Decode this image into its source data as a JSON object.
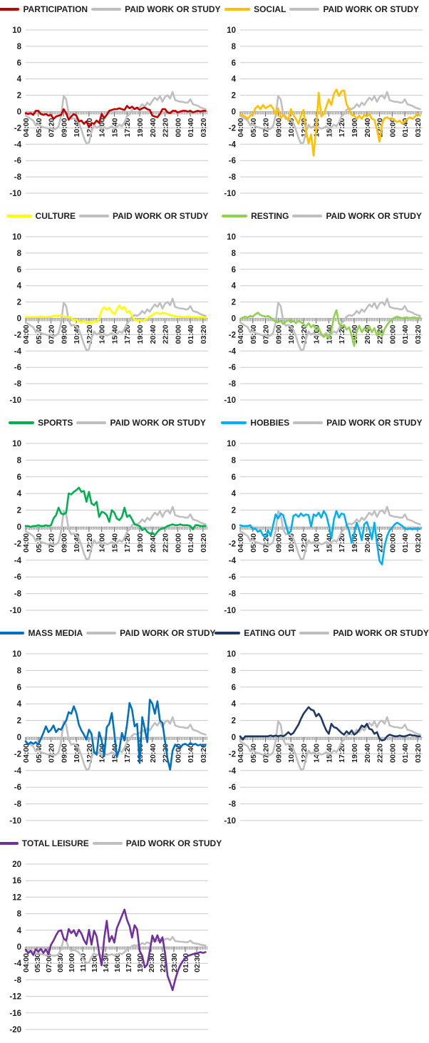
{
  "page": {
    "background": "#ffffff"
  },
  "axis": {
    "text_color": "#1f1f1f",
    "grid_color": "#c9c9c9",
    "tick_color": "#595959",
    "x_labels_100min": [
      "04:00",
      "05:40",
      "07:20",
      "09:00",
      "10:40",
      "12:20",
      "14:00",
      "15:40",
      "17:20",
      "19:00",
      "20:40",
      "22:20",
      "00:00",
      "01:40",
      "03:20"
    ],
    "x_labels_90min": [
      "04:00",
      "05:30",
      "07:00",
      "08:30",
      "10:00",
      "11:30",
      "13:00",
      "14:30",
      "16:00",
      "17:30",
      "19:00",
      "20:30",
      "22:00",
      "23:30",
      "01:00",
      "02:30"
    ],
    "y_ticks_default": [
      10,
      8,
      6,
      4,
      2,
      0,
      -2,
      -4,
      -6,
      -8,
      -10
    ],
    "y_ticks_total_leisure": [
      20,
      16,
      12,
      8,
      4,
      0,
      -4,
      -8,
      -12,
      -16,
      -20
    ]
  },
  "paid_work_or_study": {
    "name": "PAID WORK OR STUDY",
    "color": "#BFBFBF",
    "time_step_minutes": 20,
    "start_time": "04:00",
    "values": [
      -0.5,
      -0.7,
      -0.9,
      -1.1,
      -1.7,
      -1.5,
      -1.8,
      -1.9,
      -2.0,
      -2.1,
      -2.0,
      -2.2,
      -2.1,
      -1.8,
      -0.5,
      1.9,
      1.5,
      -0.3,
      -0.9,
      -0.8,
      -1.0,
      -1.4,
      -2.2,
      -3.2,
      -3.9,
      -3.8,
      -2.5,
      -1.6,
      -2.0,
      -1.8,
      -2.2,
      -1.9,
      -2.1,
      -2.0,
      -1.8,
      -2.1,
      -1.9,
      -1.6,
      -1.8,
      -1.3,
      -0.6,
      -0.3,
      0.2,
      0.4,
      0.3,
      0.5,
      0.9,
      0.6,
      1.1,
      0.8,
      1.3,
      1.7,
      1.4,
      1.9,
      1.2,
      1.8,
      2.0,
      1.6,
      2.4,
      1.4,
      1.3,
      1.2,
      1.2,
      1.1,
      1.1,
      1.5,
      0.9,
      0.8,
      0.7,
      0.5,
      0.4,
      0.3
    ]
  },
  "chart_data": [
    {
      "type": "line",
      "name": "PARTICIPATION",
      "color": "#C00000",
      "ylim": [
        -10,
        10
      ],
      "ytick": 2,
      "x_label_set": "100min",
      "overlay": "PAID WORK OR STUDY",
      "grid": true,
      "legend_position": "top",
      "values": [
        -0.2,
        -0.3,
        -0.2,
        -0.4,
        0.1,
        0.1,
        -0.3,
        -0.4,
        -0.3,
        -0.5,
        -0.4,
        -0.9,
        -0.6,
        -0.5,
        -0.4,
        0.3,
        -0.2,
        -1.0,
        -0.6,
        -0.3,
        -0.5,
        -1.2,
        -1.1,
        -1.5,
        -1.2,
        -1.9,
        -1.4,
        -1.5,
        -1.1,
        -1.4,
        -0.3,
        -0.8,
        -0.4,
        0.1,
        0.2,
        0.3,
        0.3,
        0.4,
        0.3,
        0.2,
        0.7,
        0.4,
        0.6,
        0.3,
        0.5,
        0.2,
        0.4,
        0.5,
        0.3,
        0.2,
        -0.5,
        -0.6,
        -0.7,
        -0.3,
        0.3,
        0.3,
        -0.1,
        -0.2,
        0.1,
        0.1,
        -0.1,
        0.0,
        0.1,
        0.1,
        0.0,
        0.1,
        -0.1,
        0.0,
        0.1,
        0.0,
        0.1,
        0.1
      ]
    },
    {
      "type": "line",
      "name": "SOCIAL",
      "color": "#FFC000",
      "ylim": [
        -10,
        10
      ],
      "ytick": 2,
      "x_label_set": "100min",
      "overlay": "PAID WORK OR STUDY",
      "grid": true,
      "legend_position": "top",
      "values": [
        -0.3,
        -0.5,
        -0.6,
        -0.9,
        -0.5,
        -0.4,
        0.4,
        0.7,
        0.3,
        0.8,
        0.4,
        0.6,
        0.8,
        0.4,
        -0.4,
        0.4,
        -0.8,
        -0.4,
        -0.6,
        -1.1,
        0.3,
        -0.4,
        -0.9,
        -1.5,
        -0.5,
        0.2,
        -2.4,
        -3.9,
        -2.8,
        -5.4,
        -2.0,
        2.3,
        -0.6,
        -0.3,
        0.6,
        1.5,
        0.8,
        2.2,
        2.7,
        1.9,
        2.5,
        2.6,
        0.9,
        0.3,
        -0.4,
        -0.5,
        -0.9,
        -0.5,
        -0.9,
        -0.4,
        -0.6,
        -0.3,
        -0.9,
        -1.0,
        -2.2,
        -3.7,
        -1.5,
        -0.8,
        -0.7,
        -0.9,
        -0.8,
        -1.1,
        -1.3,
        -1.1,
        -1.5,
        -1.2,
        -0.9,
        -0.7,
        -0.9,
        -0.6,
        -0.3,
        -0.5
      ]
    },
    {
      "type": "line",
      "name": "CULTURE",
      "color": "#FFFF00",
      "ylim": [
        -10,
        10
      ],
      "ytick": 2,
      "x_label_set": "100min",
      "overlay": "PAID WORK OR STUDY",
      "grid": true,
      "legend_position": "top",
      "values": [
        0.15,
        0.15,
        0.15,
        0.15,
        0.15,
        0.15,
        0.2,
        0.15,
        0.15,
        0.2,
        0.15,
        0.3,
        0.3,
        0.25,
        0.4,
        0.2,
        0.15,
        0.15,
        0.1,
        -0.3,
        -0.15,
        -0.4,
        -0.5,
        -0.3,
        -0.6,
        -0.4,
        -0.7,
        -0.3,
        -0.5,
        0.0,
        1.0,
        1.4,
        1.0,
        1.3,
        0.8,
        0.5,
        1.1,
        1.6,
        1.1,
        1.4,
        0.7,
        0.9,
        0.3,
        -0.2,
        -0.3,
        -0.2,
        -0.4,
        -0.2,
        0.0,
        0.2,
        0.4,
        0.6,
        0.7,
        0.5,
        0.7,
        0.6,
        0.5,
        0.4,
        0.3,
        0.25,
        0.2,
        0.2,
        0.15,
        0.15,
        0.2,
        0.15,
        0.15,
        0.15,
        0.1,
        0.15,
        0.1,
        0.1
      ]
    },
    {
      "type": "line",
      "name": "RESTING",
      "color": "#92D050",
      "ylim": [
        -10,
        10
      ],
      "ytick": 2,
      "x_label_set": "100min",
      "overlay": "PAID WORK OR STUDY",
      "grid": true,
      "legend_position": "top",
      "values": [
        -0.1,
        0.1,
        0.2,
        0.1,
        0.3,
        0.2,
        0.5,
        0.7,
        0.4,
        0.3,
        0.2,
        0.3,
        0.1,
        -0.2,
        -0.4,
        -0.5,
        -0.3,
        -0.7,
        -0.4,
        -0.2,
        -0.5,
        -0.3,
        -0.6,
        -0.3,
        -0.5,
        -0.7,
        -1.0,
        -0.6,
        -1.1,
        -0.8,
        -1.5,
        -1.2,
        -1.9,
        -2.3,
        -2.0,
        -2.5,
        -1.5,
        0.2,
        1.0,
        -0.6,
        -1.1,
        -0.8,
        -1.4,
        -1.1,
        -2.1,
        -3.4,
        -1.6,
        -0.9,
        -1.7,
        -1.2,
        -1.5,
        -1.0,
        -1.7,
        -1.2,
        -2.1,
        -1.6,
        -2.2,
        -1.3,
        -0.8,
        -0.4,
        -0.1,
        0.1,
        0.2,
        0.1,
        0.0,
        0.1,
        0.1,
        0.0,
        0.1,
        0.1,
        0.0,
        0.1
      ]
    },
    {
      "type": "line",
      "name": "SPORTS",
      "color": "#00B050",
      "ylim": [
        -10,
        10
      ],
      "ytick": 2,
      "x_label_set": "100min",
      "overlay": "PAID WORK OR STUDY",
      "grid": true,
      "legend_position": "top",
      "values": [
        0.1,
        0.1,
        0.0,
        0.1,
        0.1,
        0.2,
        0.1,
        0.1,
        0.2,
        0.1,
        0.2,
        1.0,
        1.4,
        2.3,
        1.6,
        1.5,
        1.7,
        4.0,
        3.9,
        4.2,
        4.4,
        4.7,
        4.2,
        4.3,
        3.0,
        4.2,
        2.8,
        2.6,
        3.0,
        1.2,
        1.8,
        1.7,
        1.4,
        0.6,
        2.0,
        1.7,
        1.0,
        0.8,
        1.2,
        2.3,
        1.2,
        1.4,
        0.9,
        0.3,
        0.2,
        0.1,
        -0.4,
        -0.2,
        -0.6,
        -0.8,
        -0.7,
        -1.0,
        -0.6,
        -0.3,
        -0.2,
        -0.1,
        0.1,
        0.2,
        0.3,
        0.2,
        0.2,
        0.3,
        0.2,
        0.2,
        0.2,
        0.1,
        -0.3,
        0.2,
        0.2,
        0.1,
        0.1,
        0.1
      ]
    },
    {
      "type": "line",
      "name": "HOBBIES",
      "color": "#00B0F0",
      "ylim": [
        -10,
        10
      ],
      "ytick": 2,
      "x_label_set": "100min",
      "overlay": "PAID WORK OR STUDY",
      "grid": true,
      "legend_position": "top",
      "values": [
        0.2,
        0.1,
        0.1,
        0.1,
        0.2,
        -0.3,
        -0.2,
        -0.6,
        -0.4,
        -1.0,
        -1.3,
        -0.4,
        -1.1,
        0.2,
        1.5,
        1.0,
        1.6,
        1.4,
        0.3,
        -0.8,
        -0.5,
        1.3,
        1.5,
        1.2,
        1.6,
        1.3,
        1.5,
        1.4,
        0.0,
        1.5,
        1.3,
        1.7,
        1.1,
        1.9,
        1.4,
        0.2,
        -1.4,
        0.9,
        1.9,
        1.1,
        1.6,
        1.5,
        0.3,
        -0.5,
        -1.9,
        -0.8,
        0.5,
        -0.4,
        -1.6,
        0.3,
        0.6,
        -0.3,
        -1.5,
        0.5,
        -2.0,
        -4.1,
        -4.5,
        -2.3,
        -1.1,
        -0.4,
        -0.1,
        0.3,
        0.5,
        0.3,
        0.1,
        -0.2,
        -0.3,
        -0.2,
        -0.3,
        -0.2,
        -0.3,
        -0.2
      ]
    },
    {
      "type": "line",
      "name": "MASS MEDIA",
      "color": "#0070C0",
      "ylim": [
        -10,
        10
      ],
      "ytick": 2,
      "x_label_set": "100min",
      "overlay": "PAID WORK OR STUDY",
      "grid": true,
      "legend_position": "top",
      "values": [
        -0.5,
        -0.9,
        -0.6,
        -0.8,
        -0.6,
        -0.9,
        -0.2,
        0.5,
        1.3,
        0.6,
        0.9,
        1.4,
        0.6,
        1.0,
        0.9,
        1.5,
        2.0,
        3.0,
        2.8,
        3.7,
        2.9,
        1.5,
        0.8,
        0.3,
        -0.3,
        0.9,
        0.4,
        -1.8,
        -2.1,
        0.6,
        -0.4,
        -2.3,
        1.2,
        1.6,
        2.9,
        0.5,
        -2.4,
        -1.4,
        0.5,
        -0.4,
        1.5,
        4.1,
        3.3,
        1.3,
        1.6,
        -3.1,
        2.4,
        1.0,
        -0.6,
        4.5,
        4.0,
        2.8,
        4.3,
        2.0,
        1.7,
        -0.5,
        -2.6,
        -3.9,
        -1.6,
        -0.9,
        -1.1,
        -1.3,
        -0.9,
        -0.8,
        -1.0,
        -0.7,
        -0.9,
        -0.8,
        -1.0,
        -0.9,
        -1.0,
        -0.9
      ]
    },
    {
      "type": "line",
      "name": "EATING OUT",
      "color": "#1F3864",
      "ylim": [
        -10,
        10
      ],
      "ytick": 2,
      "x_label_set": "100min",
      "overlay": "PAID WORK OR STUDY",
      "grid": true,
      "legend_position": "top",
      "values": [
        0.1,
        -0.3,
        0.1,
        0.1,
        0.1,
        0.1,
        0.1,
        0.1,
        0.1,
        0.1,
        0.1,
        0.1,
        0.2,
        0.1,
        0.2,
        0.1,
        0.2,
        0.1,
        0.3,
        0.6,
        0.3,
        0.5,
        1.0,
        1.5,
        2.2,
        2.8,
        3.2,
        3.6,
        3.3,
        3.2,
        2.5,
        2.8,
        2.3,
        1.5,
        0.8,
        0.4,
        1.6,
        1.2,
        1.1,
        0.8,
        0.5,
        0.3,
        0.7,
        0.4,
        0.8,
        0.3,
        0.5,
        0.9,
        1.4,
        1.2,
        1.6,
        1.0,
        0.9,
        0.4,
        0.6,
        -0.2,
        -0.4,
        -0.3,
        0.1,
        0.3,
        0.2,
        0.1,
        0.1,
        0.2,
        0.1,
        0.1,
        0.2,
        0.3,
        0.2,
        0.2,
        0.1,
        0.1
      ]
    },
    {
      "type": "line",
      "name": "TOTAL LEISURE",
      "color": "#7030A0",
      "ylim": [
        -20,
        20
      ],
      "ytick": 4,
      "x_label_set": "90min",
      "overlay": "PAID WORK OR STUDY",
      "grid": true,
      "legend_position": "top",
      "values": [
        -0.7,
        -1.5,
        -1.0,
        -2.0,
        -0.6,
        -1.2,
        -0.5,
        -1.5,
        -0.6,
        -1.8,
        0.5,
        1.5,
        2.8,
        3.8,
        4.0,
        2.0,
        1.5,
        4.3,
        3.3,
        4.0,
        2.6,
        4.1,
        3.2,
        1.6,
        0.6,
        4.1,
        0.5,
        3.9,
        2.5,
        -1.5,
        -4.5,
        2.0,
        6.3,
        1.2,
        2.6,
        1.0,
        4.5,
        6.0,
        7.5,
        9.0,
        6.5,
        5.0,
        2.2,
        5.2,
        4.2,
        -1.0,
        -2.2,
        -5.0,
        -4.3,
        -1.0,
        2.7,
        1.2,
        2.8,
        1.0,
        2.3,
        -1.5,
        -7.0,
        -8.7,
        -10.5,
        -8.0,
        -6.0,
        -4.5,
        -3.5,
        -2.8,
        -2.2,
        -2.0,
        -1.8,
        -1.6,
        -1.5,
        -1.3,
        -1.5,
        -1.3
      ]
    }
  ]
}
